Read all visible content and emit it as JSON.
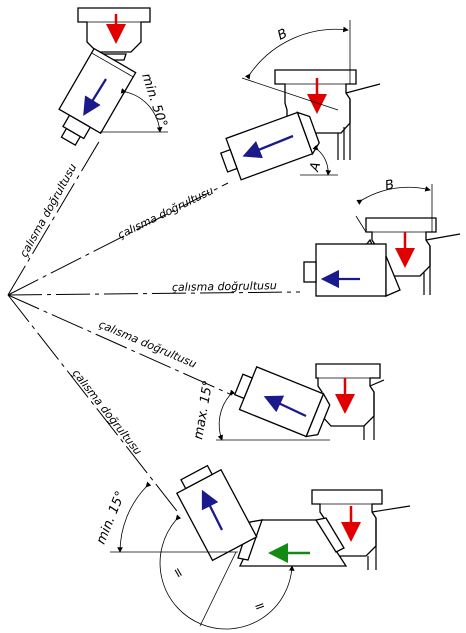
{
  "labels": {
    "direction_text": "çalısma doğrultusu",
    "min50": "min. 50°",
    "max15": "max. 15°",
    "min15": "min. 15°",
    "dim_a": "A",
    "dim_b": "B",
    "eq": "="
  },
  "colors": {
    "red_arrow": "#e00000",
    "blue_arrow": "#1a1a8c",
    "green_arrow": "#138a13",
    "line": "#000000"
  }
}
